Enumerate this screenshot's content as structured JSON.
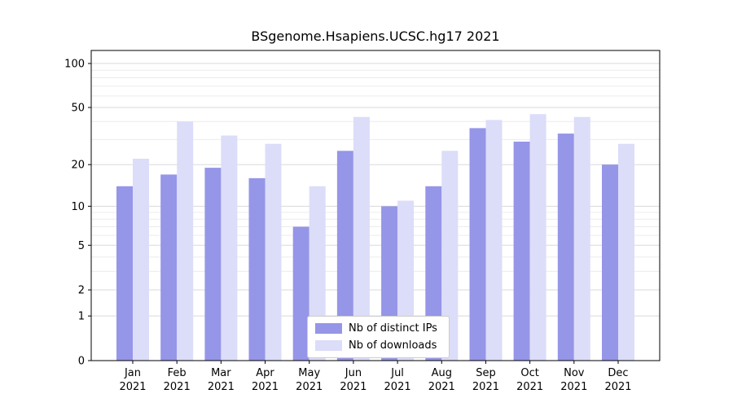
{
  "chart_data": {
    "type": "bar",
    "title": "BSgenome.Hsapiens.UCSC.hg17 2021",
    "categories": [
      "Jan",
      "Feb",
      "Mar",
      "Apr",
      "May",
      "Jun",
      "Jul",
      "Aug",
      "Sep",
      "Oct",
      "Nov",
      "Dec"
    ],
    "year": "2021",
    "series": [
      {
        "name": "Nb of distinct IPs",
        "color": "#9596e8",
        "values": [
          14,
          17,
          19,
          16,
          7,
          25,
          10,
          14,
          36,
          29,
          33,
          20
        ]
      },
      {
        "name": "Nb of downloads",
        "color": "#dcddf8",
        "values": [
          22,
          40,
          32,
          28,
          14,
          43,
          11,
          25,
          41,
          45,
          43,
          28
        ]
      }
    ],
    "xlabel": "",
    "ylabel": "",
    "yticks": [
      0,
      1,
      2,
      5,
      10,
      20,
      50,
      100
    ],
    "scale": "log1p",
    "ylim": [
      0,
      123
    ],
    "grid": true,
    "legend_position": "bottom-center"
  }
}
